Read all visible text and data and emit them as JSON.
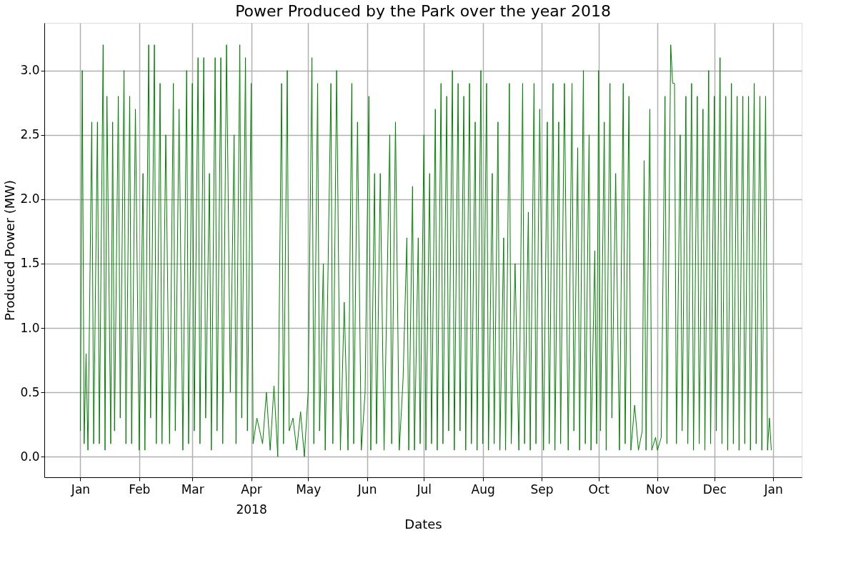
{
  "chart_data": {
    "type": "line",
    "title": "Power Produced by the Park over the year 2018",
    "xlabel": "Dates",
    "ylabel": "Produced Power (MW)",
    "xlim": [
      "2017-12-13",
      "2019-01-16"
    ],
    "xticks": [
      {
        "value": "2018-01-01",
        "label": "Jan"
      },
      {
        "value": "2018-02-01",
        "label": "Feb"
      },
      {
        "value": "2018-03-01",
        "label": "Mar"
      },
      {
        "value": "2018-04-01",
        "label": "Apr\n2018"
      },
      {
        "value": "2018-05-01",
        "label": "May"
      },
      {
        "value": "2018-06-01",
        "label": "Jun"
      },
      {
        "value": "2018-07-01",
        "label": "Jul"
      },
      {
        "value": "2018-08-01",
        "label": "Aug"
      },
      {
        "value": "2018-09-01",
        "label": "Sep"
      },
      {
        "value": "2018-10-01",
        "label": "Oct"
      },
      {
        "value": "2018-11-01",
        "label": "Nov"
      },
      {
        "value": "2018-12-01",
        "label": "Dec"
      },
      {
        "value": "2019-01-01",
        "label": "Jan"
      }
    ],
    "ylim": [
      -0.16,
      3.37
    ],
    "yticks": [
      {
        "value": 0,
        "label": "0.0"
      },
      {
        "value": 0.5,
        "label": "0.5"
      },
      {
        "value": 1,
        "label": "1.0"
      },
      {
        "value": 1.5,
        "label": "1.5"
      },
      {
        "value": 2,
        "label": "2.0"
      },
      {
        "value": 2.5,
        "label": "2.5"
      },
      {
        "value": 3,
        "label": "3.0"
      }
    ],
    "grid": true,
    "line_style": "solid",
    "marker": "none",
    "series": [
      {
        "color": "#008000",
        "x": [
          "2018-01-01",
          "2018-01-02",
          "2018-01-03",
          "2018-01-04",
          "2018-01-05",
          "2018-01-07",
          "2018-01-08",
          "2018-01-10",
          "2018-01-11",
          "2018-01-13",
          "2018-01-14",
          "2018-01-15",
          "2018-01-17",
          "2018-01-18",
          "2018-01-19",
          "2018-01-21",
          "2018-01-22",
          "2018-01-24",
          "2018-01-25",
          "2018-01-27",
          "2018-01-28",
          "2018-01-30",
          "2018-02-01",
          "2018-02-03",
          "2018-02-04",
          "2018-02-06",
          "2018-02-07",
          "2018-02-09",
          "2018-02-10",
          "2018-02-12",
          "2018-02-13",
          "2018-02-15",
          "2018-02-17",
          "2018-02-19",
          "2018-02-20",
          "2018-02-22",
          "2018-02-24",
          "2018-02-26",
          "2018-02-27",
          "2018-03-01",
          "2018-03-02",
          "2018-03-04",
          "2018-03-05",
          "2018-03-07",
          "2018-03-08",
          "2018-03-10",
          "2018-03-11",
          "2018-03-13",
          "2018-03-14",
          "2018-03-16",
          "2018-03-17",
          "2018-03-19",
          "2018-03-21",
          "2018-03-23",
          "2018-03-24",
          "2018-03-26",
          "2018-03-27",
          "2018-03-29",
          "2018-03-30",
          "2018-04-01",
          "2018-04-02",
          "2018-04-04",
          "2018-04-07",
          "2018-04-09",
          "2018-04-11",
          "2018-04-13",
          "2018-04-15",
          "2018-04-17",
          "2018-04-18",
          "2018-04-20",
          "2018-04-21",
          "2018-04-23",
          "2018-04-25",
          "2018-04-27",
          "2018-04-29",
          "2018-05-01",
          "2018-05-03",
          "2018-05-04",
          "2018-05-06",
          "2018-05-07",
          "2018-05-09",
          "2018-05-10",
          "2018-05-13",
          "2018-05-14",
          "2018-05-16",
          "2018-05-18",
          "2018-05-20",
          "2018-05-22",
          "2018-05-24",
          "2018-05-25",
          "2018-05-27",
          "2018-05-29",
          "2018-05-31",
          "2018-06-02",
          "2018-06-03",
          "2018-06-05",
          "2018-06-06",
          "2018-06-08",
          "2018-06-10",
          "2018-06-13",
          "2018-06-14",
          "2018-06-16",
          "2018-06-18",
          "2018-06-20",
          "2018-06-22",
          "2018-06-23",
          "2018-06-25",
          "2018-06-26",
          "2018-06-28",
          "2018-06-29",
          "2018-07-01",
          "2018-07-02",
          "2018-07-04",
          "2018-07-05",
          "2018-07-07",
          "2018-07-08",
          "2018-07-10",
          "2018-07-11",
          "2018-07-13",
          "2018-07-14",
          "2018-07-16",
          "2018-07-17",
          "2018-07-19",
          "2018-07-20",
          "2018-07-22",
          "2018-07-23",
          "2018-07-25",
          "2018-07-26",
          "2018-07-28",
          "2018-07-29",
          "2018-07-31",
          "2018-08-01",
          "2018-08-03",
          "2018-08-04",
          "2018-08-06",
          "2018-08-07",
          "2018-08-09",
          "2018-08-10",
          "2018-08-12",
          "2018-08-13",
          "2018-08-15",
          "2018-08-16",
          "2018-08-18",
          "2018-08-20",
          "2018-08-22",
          "2018-08-23",
          "2018-08-25",
          "2018-08-26",
          "2018-08-28",
          "2018-08-29",
          "2018-08-31",
          "2018-09-02",
          "2018-09-04",
          "2018-09-05",
          "2018-09-07",
          "2018-09-08",
          "2018-09-10",
          "2018-09-11",
          "2018-09-13",
          "2018-09-15",
          "2018-09-17",
          "2018-09-18",
          "2018-09-20",
          "2018-09-21",
          "2018-09-23",
          "2018-09-24",
          "2018-09-26",
          "2018-09-27",
          "2018-09-29",
          "2018-09-30",
          "2018-10-01",
          "2018-10-02",
          "2018-10-04",
          "2018-10-05",
          "2018-10-07",
          "2018-10-08",
          "2018-10-10",
          "2018-10-12",
          "2018-10-14",
          "2018-10-15",
          "2018-10-17",
          "2018-10-18",
          "2018-10-20",
          "2018-10-22",
          "2018-10-24",
          "2018-10-25",
          "2018-10-26",
          "2018-10-28",
          "2018-10-29",
          "2018-10-31",
          "2018-11-01",
          "2018-11-03",
          "2018-11-05",
          "2018-11-06",
          "2018-11-08",
          "2018-11-09",
          "2018-11-10",
          "2018-11-11",
          "2018-11-13",
          "2018-11-14",
          "2018-11-16",
          "2018-11-17",
          "2018-11-19",
          "2018-11-20",
          "2018-11-22",
          "2018-11-23",
          "2018-11-25",
          "2018-11-26",
          "2018-11-28",
          "2018-11-29",
          "2018-12-01",
          "2018-12-02",
          "2018-12-04",
          "2018-12-05",
          "2018-12-07",
          "2018-12-08",
          "2018-12-10",
          "2018-12-11",
          "2018-12-13",
          "2018-12-14",
          "2018-12-16",
          "2018-12-17",
          "2018-12-19",
          "2018-12-20",
          "2018-12-22",
          "2018-12-23",
          "2018-12-25",
          "2018-12-26",
          "2018-12-28",
          "2018-12-29",
          "2018-12-30",
          "2018-12-31"
        ],
        "values": [
          0.2,
          3.0,
          0.1,
          0.8,
          0.05,
          2.6,
          0.1,
          2.6,
          0.1,
          3.2,
          0.05,
          2.8,
          0.1,
          2.6,
          0.2,
          2.8,
          0.3,
          3.0,
          0.1,
          2.8,
          0.1,
          2.7,
          0.05,
          2.2,
          0.05,
          3.2,
          0.3,
          3.2,
          0.1,
          2.9,
          0.1,
          2.5,
          0.1,
          2.9,
          0.2,
          2.7,
          0.05,
          3.0,
          0.1,
          2.9,
          0.2,
          3.1,
          0.1,
          3.1,
          0.3,
          2.2,
          0.05,
          3.1,
          0.2,
          3.1,
          0.1,
          3.2,
          0.5,
          2.5,
          0.1,
          3.2,
          0.3,
          3.1,
          0.2,
          2.9,
          0.1,
          0.3,
          0.1,
          0.5,
          0.05,
          0.55,
          0.0,
          2.9,
          0.1,
          3.0,
          0.2,
          0.3,
          0.05,
          0.35,
          0.0,
          0.5,
          3.1,
          0.1,
          2.9,
          0.2,
          1.5,
          0.05,
          2.9,
          0.1,
          3.0,
          0.05,
          1.2,
          0.05,
          2.9,
          0.1,
          2.6,
          0.05,
          0.5,
          2.8,
          0.05,
          2.2,
          0.1,
          2.2,
          0.05,
          2.5,
          0.1,
          2.6,
          0.05,
          0.6,
          1.7,
          0.05,
          2.1,
          0.05,
          1.7,
          0.1,
          2.5,
          0.05,
          2.2,
          0.1,
          2.7,
          0.05,
          2.9,
          0.1,
          2.8,
          0.2,
          3.0,
          0.05,
          2.9,
          0.2,
          2.8,
          0.05,
          2.9,
          0.1,
          2.6,
          0.05,
          3.0,
          0.1,
          2.9,
          0.05,
          2.2,
          0.1,
          2.6,
          0.05,
          1.7,
          0.05,
          2.9,
          0.1,
          1.5,
          0.05,
          2.9,
          0.1,
          1.9,
          0.05,
          2.9,
          0.1,
          2.7,
          0.05,
          2.6,
          0.1,
          2.9,
          0.05,
          2.6,
          0.1,
          2.9,
          0.05,
          2.9,
          0.2,
          2.4,
          0.05,
          3.0,
          0.1,
          2.5,
          0.05,
          1.6,
          0.1,
          3.0,
          0.2,
          2.6,
          0.05,
          2.9,
          0.3,
          2.2,
          0.05,
          2.9,
          0.1,
          2.8,
          0.05,
          0.4,
          0.05,
          0.2,
          2.3,
          0.05,
          2.7,
          0.05,
          0.15,
          0.05,
          0.15,
          2.8,
          0.1,
          3.2,
          2.9,
          2.9,
          0.1,
          2.5,
          0.2,
          2.8,
          0.1,
          2.9,
          0.05,
          2.8,
          0.1,
          2.7,
          0.05,
          3.0,
          0.1,
          2.8,
          0.2,
          3.1,
          0.1,
          2.8,
          0.05,
          2.9,
          0.1,
          2.8,
          0.05,
          2.8,
          0.1,
          2.8,
          0.05,
          2.9,
          0.1,
          2.8,
          0.05,
          2.8,
          0.05,
          0.3,
          0.05
        ]
      }
    ]
  }
}
